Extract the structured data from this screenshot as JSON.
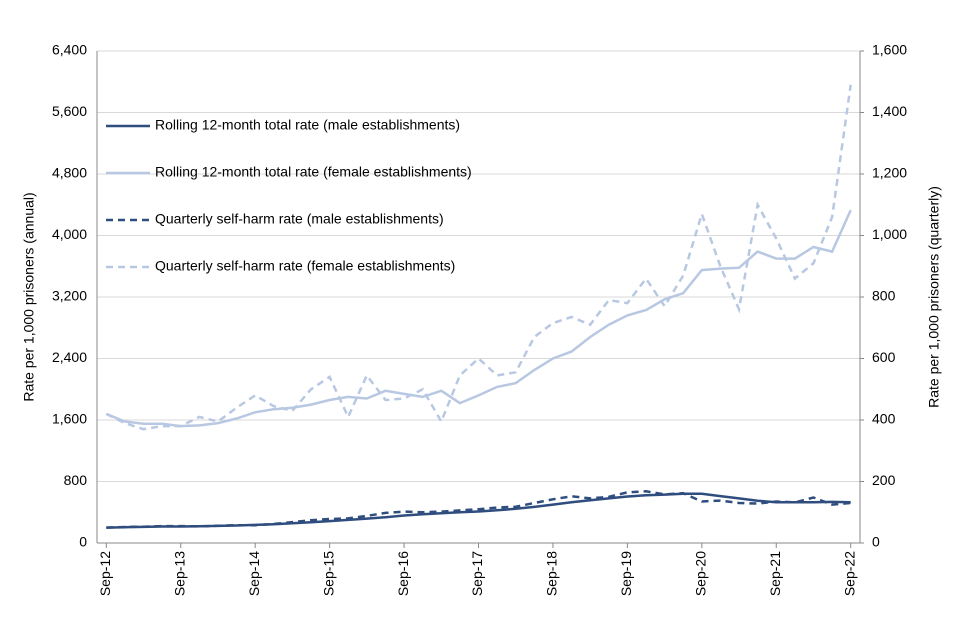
{
  "chart_data": {
    "type": "line",
    "y_label": "Rate per 1,000 prisoners (annual)",
    "y2_label": "Rate per 1,000 prisoners (quarterly)",
    "categories": [
      "Sep-12",
      null,
      null,
      null,
      "Sep-13",
      null,
      null,
      null,
      "Sep-14",
      null,
      null,
      null,
      "Sep-15",
      null,
      null,
      null,
      "Sep-16",
      null,
      null,
      null,
      "Sep-17",
      null,
      null,
      null,
      "Sep-18",
      null,
      null,
      null,
      "Sep-19",
      null,
      null,
      null,
      "Sep-20",
      null,
      null,
      null,
      "Sep-21",
      null,
      null,
      null,
      "Sep-22"
    ],
    "ylim": [
      0,
      6400
    ],
    "yticks": [
      0,
      {
        "value": 800,
        "label": "800"
      },
      {
        "value": 1600,
        "label": "1,600"
      },
      {
        "value": 2400,
        "label": "2,400"
      },
      {
        "value": 3200,
        "label": "3,200"
      },
      {
        "value": 4000,
        "label": "4,000"
      },
      {
        "value": 4800,
        "label": "4,800"
      },
      {
        "value": 5600,
        "label": "5,600"
      },
      {
        "value": 6400,
        "label": "6,400"
      }
    ],
    "y2lim": [
      0,
      1600
    ],
    "y2ticks": [
      0,
      200,
      400,
      600,
      800,
      {
        "value": 1000,
        "label": "1,000"
      },
      {
        "value": 1200,
        "label": "1,200"
      },
      {
        "value": 1400,
        "label": "1,400"
      },
      {
        "value": 1600,
        "label": "1,600"
      }
    ],
    "grid": true,
    "legend": "left",
    "series": [
      {
        "name": "Rolling 12-month total rate (male establishments)",
        "color": "#2f4d7e",
        "dash": false,
        "values": [
          200,
          205,
          210,
          215,
          215,
          218,
          222,
          228,
          235,
          245,
          258,
          270,
          285,
          300,
          318,
          335,
          358,
          375,
          388,
          400,
          410,
          425,
          445,
          470,
          500,
          530,
          555,
          580,
          605,
          620,
          630,
          640,
          640,
          610,
          580,
          550,
          530,
          530,
          530,
          535,
          530
        ]
      },
      {
        "name": "Rolling 12-month total rate (female establishments)",
        "color": "#b8c8e2",
        "dash": false,
        "values": [
          1680,
          1580,
          1550,
          1550,
          1520,
          1530,
          1560,
          1620,
          1700,
          1740,
          1760,
          1800,
          1860,
          1900,
          1880,
          1980,
          1940,
          1900,
          1980,
          1820,
          1920,
          2030,
          2080,
          2250,
          2400,
          2490,
          2680,
          2840,
          2960,
          3030,
          3170,
          3250,
          3550,
          3570,
          3580,
          3790,
          3700,
          3700,
          3850,
          3790,
          4330
        ]
      },
      {
        "name": "Quarterly self-harm rate (male establishments)",
        "color": "#2f4d7e",
        "dash": true,
        "axis": "y2",
        "values": [
          50,
          52,
          53,
          55,
          55,
          54,
          56,
          58,
          58,
          62,
          68,
          74,
          78,
          80,
          88,
          98,
          102,
          100,
          102,
          106,
          110,
          115,
          118,
          130,
          142,
          152,
          145,
          150,
          165,
          168,
          158,
          162,
          135,
          138,
          130,
          128,
          135,
          132,
          148,
          125,
          130
        ]
      },
      {
        "name": "Quarterly self-harm rate (female establishments)",
        "color": "#b8c8e2",
        "dash": true,
        "axis": "y2",
        "values": [
          420,
          390,
          370,
          380,
          380,
          410,
          395,
          440,
          480,
          445,
          430,
          500,
          540,
          410,
          545,
          465,
          470,
          500,
          395,
          545,
          600,
          545,
          555,
          670,
          715,
          735,
          710,
          790,
          780,
          860,
          770,
          870,
          1070,
          900,
          760,
          1100,
          990,
          860,
          910,
          1060,
          1490
        ]
      }
    ]
  }
}
